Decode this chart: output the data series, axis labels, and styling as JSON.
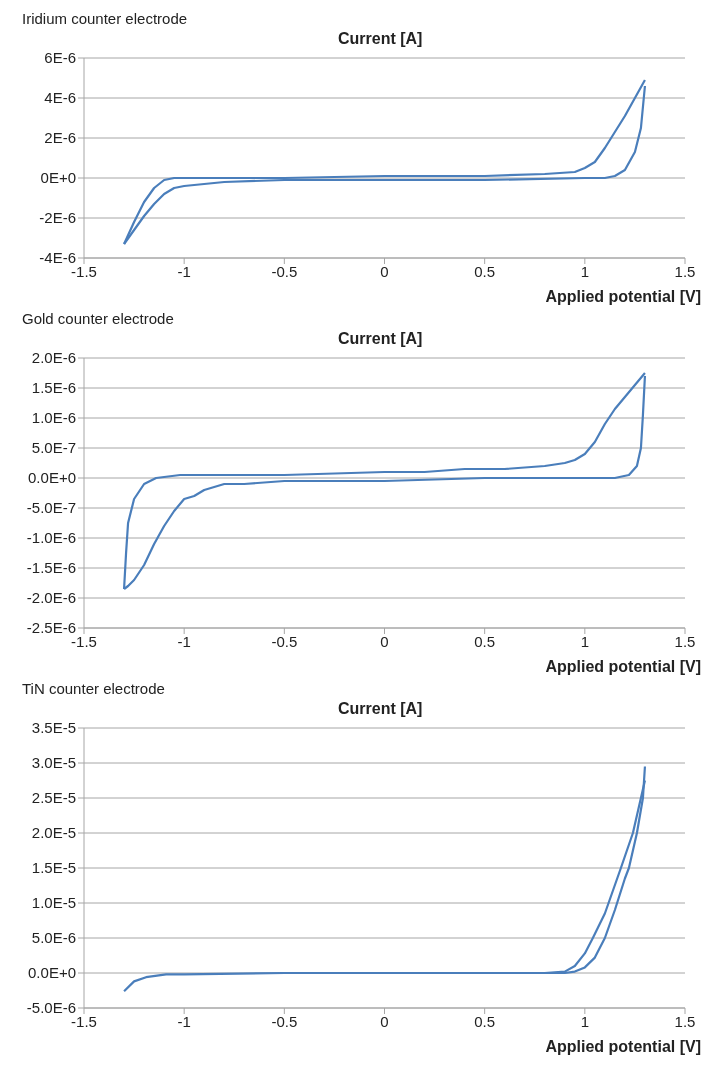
{
  "chart_data": [
    {
      "type": "line",
      "title": "Iridium counter electrode",
      "xlabel": "Applied potential [V]",
      "ylabel": "Current [A]",
      "xlim": [
        -1.5,
        1.5
      ],
      "xticks": [
        -1.5,
        -1,
        -0.5,
        0,
        0.5,
        1,
        1.5
      ],
      "ylim": [
        -4e-06,
        6e-06
      ],
      "yticks": [
        {
          "value": -4e-06,
          "label": "-4E-6"
        },
        {
          "value": -2e-06,
          "label": "-2E-6"
        },
        {
          "value": 0,
          "label": "0E+0"
        },
        {
          "value": 2e-06,
          "label": "2E-6"
        },
        {
          "value": 4e-06,
          "label": "4E-6"
        },
        {
          "value": 6e-06,
          "label": "6E-6"
        }
      ],
      "grid": "y",
      "series": [
        {
          "color": "#4a7ebb",
          "x": [
            -1.3,
            -1.25,
            -1.2,
            -1.15,
            -1.1,
            -1.05,
            -1.0,
            -0.5,
            0,
            0.5,
            0.8,
            0.95,
            1.0,
            1.05,
            1.1,
            1.15,
            1.2,
            1.25,
            1.3
          ],
          "values": [
            -3.3e-06,
            -2.2e-06,
            -1.2e-06,
            -5e-07,
            -1e-07,
            0,
            0,
            0,
            1e-07,
            1e-07,
            2e-07,
            3e-07,
            5e-07,
            8e-07,
            1.5e-06,
            2.3e-06,
            3.1e-06,
            4e-06,
            4.9e-06
          ]
        },
        {
          "color": "#4a7ebb",
          "x": [
            1.3,
            1.28,
            1.25,
            1.2,
            1.15,
            1.1,
            1.0,
            0.5,
            0,
            -0.5,
            -0.8,
            -0.9,
            -1.0,
            -1.05,
            -1.1,
            -1.15,
            -1.2,
            -1.25,
            -1.3
          ],
          "values": [
            4.6e-06,
            2.5e-06,
            1.3e-06,
            4e-07,
            1e-07,
            0,
            0,
            -1e-07,
            -1e-07,
            -1e-07,
            -2e-07,
            -3e-07,
            -4e-07,
            -5e-07,
            -8e-07,
            -1.3e-06,
            -1.9e-06,
            -2.6e-06,
            -3.3e-06
          ]
        }
      ]
    },
    {
      "type": "line",
      "title": "Gold counter electrode",
      "xlabel": "Applied potential [V]",
      "ylabel": "Current [A]",
      "xlim": [
        -1.5,
        1.5
      ],
      "xticks": [
        -1.5,
        -1,
        -0.5,
        0,
        0.5,
        1,
        1.5
      ],
      "ylim": [
        -2.5e-06,
        2e-06
      ],
      "yticks": [
        {
          "value": -2.5e-06,
          "label": "-2.5E-6"
        },
        {
          "value": -2e-06,
          "label": "-2.0E-6"
        },
        {
          "value": -1.5e-06,
          "label": "-1.5E-6"
        },
        {
          "value": -1e-06,
          "label": "-1.0E-6"
        },
        {
          "value": -5e-07,
          "label": "-5.0E-7"
        },
        {
          "value": 0,
          "label": "0.0E+0"
        },
        {
          "value": 5e-07,
          "label": "5.0E-7"
        },
        {
          "value": 1e-06,
          "label": "1.0E-6"
        },
        {
          "value": 1.5e-06,
          "label": "1.5E-6"
        },
        {
          "value": 2e-06,
          "label": "2.0E-6"
        }
      ],
      "grid": "y",
      "series": [
        {
          "color": "#4a7ebb",
          "x": [
            -1.3,
            -1.29,
            -1.28,
            -1.25,
            -1.2,
            -1.14,
            -1.02,
            -0.5,
            0,
            0.2,
            0.4,
            0.6,
            0.8,
            0.9,
            0.95,
            1.0,
            1.05,
            1.1,
            1.15,
            1.2,
            1.25,
            1.3
          ],
          "values": [
            -1.85e-06,
            -1.25e-06,
            -7.5e-07,
            -3.5e-07,
            -1e-07,
            0,
            5e-08,
            5e-08,
            1e-07,
            1e-07,
            1.5e-07,
            1.5e-07,
            2e-07,
            2.5e-07,
            3e-07,
            4e-07,
            6e-07,
            9e-07,
            1.15e-06,
            1.35e-06,
            1.55e-06,
            1.75e-06
          ]
        },
        {
          "color": "#4a7ebb",
          "x": [
            1.3,
            1.29,
            1.28,
            1.26,
            1.22,
            1.15,
            1.0,
            0.5,
            0,
            -0.5,
            -0.7,
            -0.8,
            -0.85,
            -0.9,
            -0.95,
            -1.0,
            -1.05,
            -1.1,
            -1.15,
            -1.2,
            -1.25,
            -1.28,
            -1.3
          ],
          "values": [
            1.7e-06,
            1.05e-06,
            5e-07,
            2e-07,
            5e-08,
            0,
            0,
            0,
            -5e-08,
            -5e-08,
            -1e-07,
            -1e-07,
            -1.5e-07,
            -2e-07,
            -3e-07,
            -3.5e-07,
            -5.5e-07,
            -8e-07,
            -1.1e-06,
            -1.45e-06,
            -1.7e-06,
            -1.8e-06,
            -1.85e-06
          ]
        }
      ]
    },
    {
      "type": "line",
      "title": "TiN counter electrode",
      "xlabel": "Applied potential [V]",
      "ylabel": "Current [A]",
      "xlim": [
        -1.5,
        1.5
      ],
      "xticks": [
        -1.5,
        -1,
        -0.5,
        0,
        0.5,
        1,
        1.5
      ],
      "ylim": [
        -5e-06,
        3.5e-05
      ],
      "yticks": [
        {
          "value": -5e-06,
          "label": "-5.0E-6"
        },
        {
          "value": 0,
          "label": "0.0E+0"
        },
        {
          "value": 5e-06,
          "label": "5.0E-6"
        },
        {
          "value": 1e-05,
          "label": "1.0E-5"
        },
        {
          "value": 1.5e-05,
          "label": "1.5E-5"
        },
        {
          "value": 2e-05,
          "label": "2.0E-5"
        },
        {
          "value": 2.5e-05,
          "label": "2.5E-5"
        },
        {
          "value": 3e-05,
          "label": "3.0E-5"
        },
        {
          "value": 3.5e-05,
          "label": "3.5E-5"
        }
      ],
      "grid": "y",
      "series": [
        {
          "color": "#4a7ebb",
          "x": [
            -1.3,
            -1.25,
            -1.19,
            -1.09,
            -1.0,
            -0.5,
            0,
            0.5,
            0.8,
            0.9,
            0.95,
            1.0,
            1.05,
            1.1,
            1.15,
            1.2,
            1.22,
            1.26,
            1.29,
            1.3
          ],
          "values": [
            -2.6e-06,
            -1.2e-06,
            -6e-07,
            -2e-07,
            -2e-07,
            0,
            0,
            0,
            0,
            0,
            2e-07,
            8e-07,
            2.2e-06,
            5e-06,
            9e-06,
            1.35e-05,
            1.5e-05,
            2e-05,
            2.5e-05,
            2.95e-05
          ]
        },
        {
          "color": "#4a7ebb",
          "x": [
            1.3,
            1.24,
            1.18,
            1.1,
            1.04,
            1.0,
            0.95,
            0.9,
            0.8
          ],
          "values": [
            2.75e-05,
            2e-05,
            1.5e-05,
            8.5e-06,
            5e-06,
            2.8e-06,
            1e-06,
            2e-07,
            0
          ]
        }
      ]
    }
  ]
}
